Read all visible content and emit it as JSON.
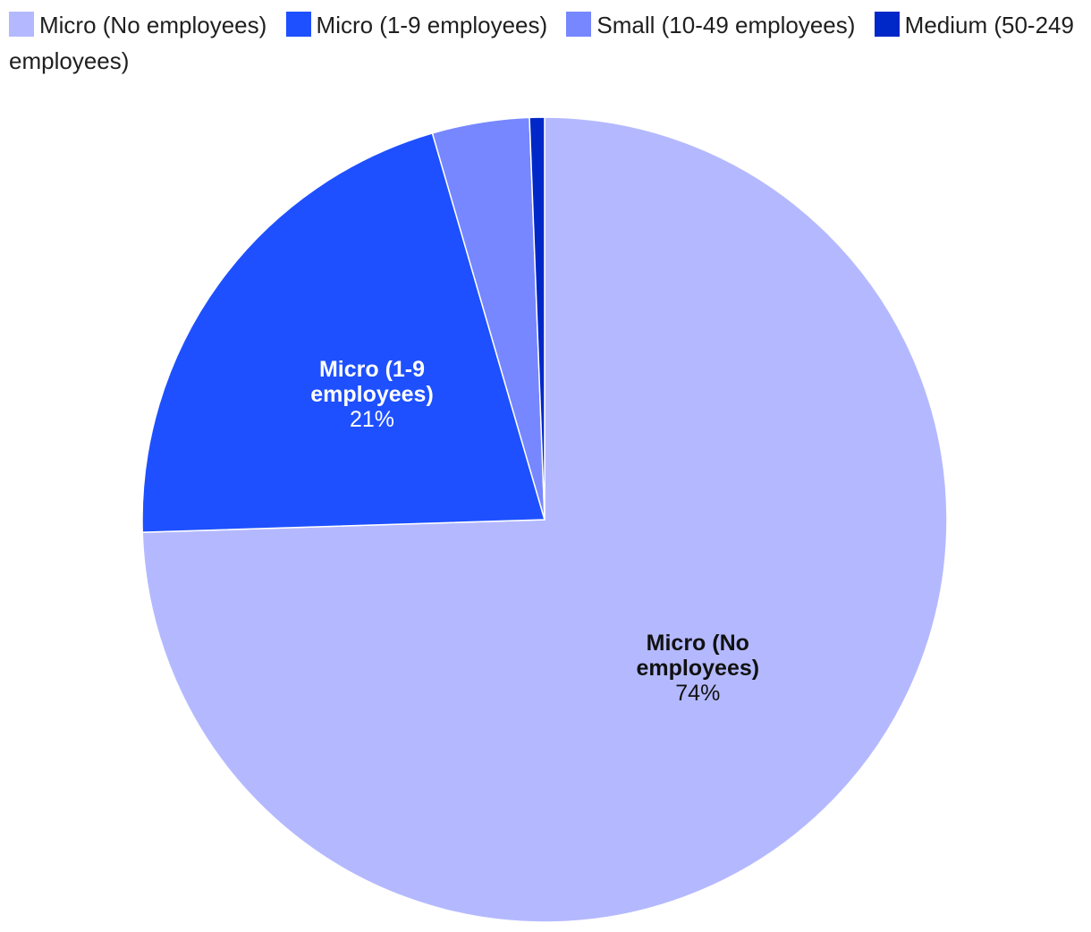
{
  "chart_data": {
    "type": "pie",
    "start_angle_deg": 0,
    "direction": "clockwise",
    "legend_position": "top",
    "slices": [
      {
        "name": "Micro (No employees)",
        "label_lines": [
          "Micro (No",
          "employees)"
        ],
        "value": 74.5,
        "value_label": "74%",
        "color": "#b4b9ff",
        "label_color": "#111111"
      },
      {
        "name": "Micro (1-9 employees)",
        "label_lines": [
          "Micro (1-9",
          "employees)"
        ],
        "value": 21.0,
        "value_label": "21%",
        "color": "#1e50ff",
        "label_color": "#ffffff"
      },
      {
        "name": "Small (10-49 employees)",
        "label_lines": [],
        "value": 3.9,
        "value_label": "",
        "color": "#7787ff",
        "label_color": "#ffffff"
      },
      {
        "name": "Medium (50-249 employees)",
        "label_lines": [],
        "value": 0.6,
        "value_label": "",
        "color": "#0028c8",
        "label_color": "#ffffff"
      }
    ]
  }
}
